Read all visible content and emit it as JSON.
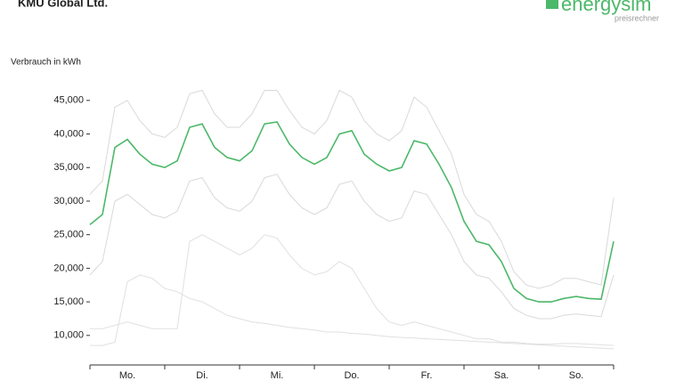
{
  "title": "KMU Global Ltd.",
  "logo": {
    "name": "energysim",
    "tagline": "preisrechner"
  },
  "chart_data": {
    "type": "line",
    "y_label": "Verbrauch in kWh",
    "categories": [
      null,
      null,
      null,
      "Mo.",
      null,
      null,
      null,
      null,
      null,
      "Di.",
      null,
      null,
      null,
      null,
      null,
      "Mi.",
      null,
      null,
      null,
      null,
      null,
      "Do.",
      null,
      null,
      null,
      null,
      null,
      "Fr.",
      null,
      null,
      null,
      null,
      null,
      "Sa.",
      null,
      null,
      null,
      null,
      null,
      "So.",
      null,
      null,
      null
    ],
    "ylim": [
      5600,
      46700
    ],
    "yticks": [
      {
        "value": 10000,
        "label": "10,000"
      },
      {
        "value": 15000,
        "label": "15,000"
      },
      {
        "value": 20000,
        "label": "20,000"
      },
      {
        "value": 25000,
        "label": "25,000"
      },
      {
        "value": 30000,
        "label": "30,000"
      },
      {
        "value": 35000,
        "label": "35,000"
      },
      {
        "value": 40000,
        "label": "40,000"
      },
      {
        "value": 45000,
        "label": "45,000"
      }
    ],
    "series": [
      {
        "color": "#d9d9d9",
        "values": [
          31000,
          33000,
          44000,
          45000,
          42000,
          40000,
          39500,
          41000,
          46000,
          46500,
          43000,
          41000,
          41000,
          43000,
          46500,
          46500,
          43500,
          41000,
          40000,
          42000,
          46500,
          45500,
          42000,
          40000,
          39000,
          40500,
          45500,
          44000,
          40500,
          37000,
          31000,
          28000,
          27000,
          24000,
          19500,
          17500,
          17000,
          17500,
          18500,
          18500,
          18000,
          17500,
          30500
        ]
      },
      {
        "color": "#d9d9d9",
        "values": [
          19000,
          21000,
          30000,
          31000,
          29500,
          28000,
          27500,
          28500,
          33000,
          33500,
          30500,
          29000,
          28500,
          30000,
          33500,
          34000,
          31000,
          29000,
          28000,
          29000,
          32500,
          33000,
          30000,
          28000,
          27000,
          27500,
          31500,
          31000,
          28000,
          25000,
          21000,
          19000,
          18500,
          16500,
          14000,
          13000,
          12500,
          12500,
          13000,
          13200,
          13000,
          12800,
          19000
        ]
      },
      {
        "color": "#e0e0e0",
        "values": [
          11000,
          11000,
          11500,
          12000,
          11500,
          11000,
          11000,
          11000,
          24000,
          25000,
          24000,
          23000,
          22000,
          23000,
          25000,
          24500,
          22000,
          20000,
          19000,
          19500,
          21000,
          20000,
          17000,
          14000,
          12000,
          11500,
          12000,
          11500,
          11000,
          10500,
          10000,
          9500,
          9500,
          9000,
          9000,
          8800,
          8700,
          8700,
          8800,
          8800,
          8700,
          8600,
          8500
        ]
      },
      {
        "color": "#e0e0e0",
        "values": [
          8500,
          8500,
          9000,
          18000,
          19000,
          18500,
          17000,
          16500,
          15500,
          15000,
          14000,
          13000,
          12500,
          12000,
          11800,
          11500,
          11200,
          11000,
          10800,
          10500,
          10500,
          10300,
          10200,
          10000,
          9800,
          9700,
          9600,
          9500,
          9400,
          9300,
          9200,
          9100,
          9000,
          8900,
          8800,
          8700,
          8600,
          8500,
          8400,
          8300,
          8200,
          8100,
          8000
        ]
      },
      {
        "color": "#4cb869",
        "values": [
          26500,
          28000,
          38000,
          39200,
          37000,
          35500,
          35000,
          36000,
          41000,
          41500,
          38000,
          36500,
          36000,
          37500,
          41500,
          41800,
          38500,
          36500,
          35500,
          36500,
          40000,
          40500,
          37000,
          35500,
          34500,
          35000,
          39000,
          38500,
          35500,
          32000,
          27000,
          24000,
          23500,
          21000,
          17000,
          15500,
          15000,
          15000,
          15500,
          15800,
          15500,
          15400,
          24000
        ]
      }
    ]
  }
}
